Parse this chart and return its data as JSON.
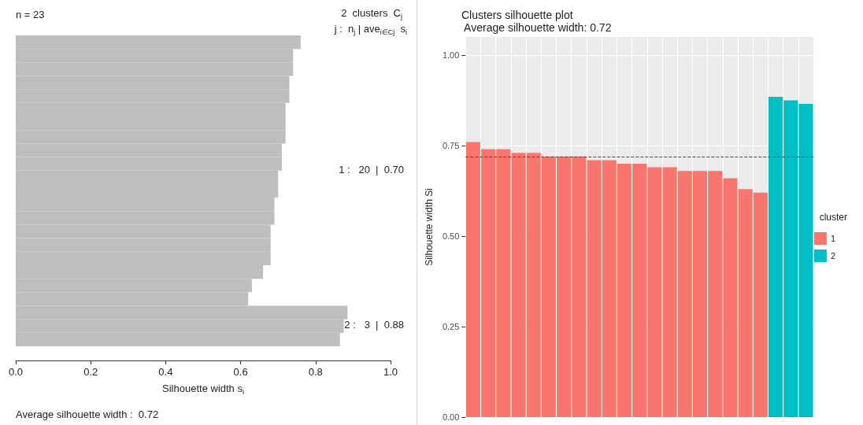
{
  "chart_data": [
    {
      "type": "bar",
      "orientation": "horizontal",
      "title": "n = 23",
      "xlabel": "Silhouette width s$_{i}$",
      "categories": [
        null,
        null,
        null,
        null,
        null,
        null,
        null,
        null,
        null,
        null,
        null,
        null,
        null,
        null,
        null,
        null,
        null,
        null,
        null,
        null,
        null,
        null,
        null
      ],
      "values": [
        0.76,
        0.74,
        0.74,
        0.73,
        0.73,
        0.72,
        0.72,
        0.72,
        0.71,
        0.71,
        0.7,
        0.7,
        0.69,
        0.69,
        0.68,
        0.68,
        0.68,
        0.66,
        0.63,
        0.62,
        0.885,
        0.875,
        0.865
      ],
      "color": "#bebebe",
      "xlim": [
        0,
        1
      ],
      "xticks": [
        {
          "value": 0,
          "label": "0.0"
        },
        {
          "value": 0.2,
          "label": "0.2"
        },
        {
          "value": 0.4,
          "label": "0.4"
        },
        {
          "value": 0.6,
          "label": "0.6"
        },
        {
          "value": 0.8,
          "label": "0.8"
        },
        {
          "value": 1,
          "label": "1.0"
        }
      ],
      "tick_labels": "x",
      "annotations": [
        "2  clusters  C$_{j}$",
        "j :  n$_{j}$ | ave$_{i∈Cj}$  s$_{i}$",
        "1 :   20  |  0.70",
        "2 :   3  |  0.88",
        "Average silhouette width :  0.72"
      ]
    },
    {
      "type": "bar",
      "title": "Clusters silhouette plot",
      "subtitle": " Average silhouette width: 0.72",
      "ylabel": "Silhouette width Si",
      "legend_title": "cluster",
      "categories": [
        null,
        null,
        null,
        null,
        null,
        null,
        null,
        null,
        null,
        null,
        null,
        null,
        null,
        null,
        null,
        null,
        null,
        null,
        null,
        null,
        null,
        null,
        null
      ],
      "series": [
        {
          "name": "1",
          "color": "#f8766d",
          "values": [
            0.76,
            0.74,
            0.74,
            0.73,
            0.73,
            0.72,
            0.72,
            0.72,
            0.71,
            0.71,
            0.7,
            0.7,
            0.69,
            0.69,
            0.68,
            0.68,
            0.68,
            0.66,
            0.63,
            0.62,
            null,
            null,
            null
          ]
        },
        {
          "name": "2",
          "color": "#00bfc4",
          "values": [
            null,
            null,
            null,
            null,
            null,
            null,
            null,
            null,
            null,
            null,
            null,
            null,
            null,
            null,
            null,
            null,
            null,
            null,
            null,
            null,
            0.885,
            0.875,
            0.865
          ]
        }
      ],
      "ylim": [
        0,
        1.05
      ],
      "yticks": [
        {
          "value": 0,
          "label": "0.00"
        },
        {
          "value": 0.25,
          "label": "0.25"
        },
        {
          "value": 0.5,
          "label": "0.50"
        },
        {
          "value": 0.75,
          "label": "0.75"
        },
        {
          "value": 1,
          "label": "1.00"
        }
      ],
      "tick_labels": "y",
      "grid": true,
      "legend": "right",
      "ref_lines": [
        {
          "axis": "y",
          "value": 0.72,
          "color": "#ff0000",
          "line_style": "dashed"
        }
      ]
    }
  ]
}
